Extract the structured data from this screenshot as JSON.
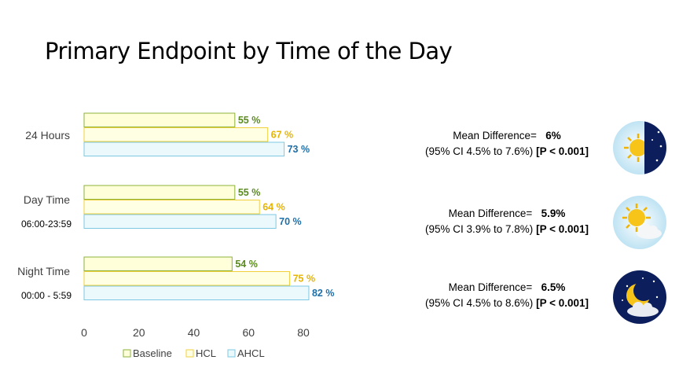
{
  "title": "Primary Endpoint by Time of the Day",
  "chart_data": {
    "type": "bar",
    "orientation": "horizontal",
    "categories": [
      {
        "label": "24 Hours",
        "sublabel": ""
      },
      {
        "label": "Day Time",
        "sublabel": "06:00-23:59"
      },
      {
        "label": "Night Time",
        "sublabel": "00:00 - 5:59"
      }
    ],
    "series": [
      {
        "name": "Baseline",
        "values": [
          55,
          55,
          54
        ],
        "labels": [
          "55 %",
          "55 %",
          "54 %"
        ],
        "fill": "#FFFFD9",
        "stroke": "#8DB33B",
        "text_color": "#5A8A1F"
      },
      {
        "name": "HCL",
        "values": [
          67,
          64,
          75
        ],
        "labels": [
          "67 %",
          "64 %",
          "75 %"
        ],
        "fill": "#FFFFE3",
        "stroke": "#F2D03D",
        "text_color": "#E8B400"
      },
      {
        "name": "AHCL",
        "values": [
          73,
          70,
          82
        ],
        "labels": [
          "73 %",
          "70 %",
          "82 %"
        ],
        "fill": "#EBF8FC",
        "stroke": "#7FC8E3",
        "text_color": "#1F6FA8"
      }
    ],
    "x_ticks": [
      0,
      20,
      40,
      60,
      80
    ],
    "xlim": [
      0,
      80
    ],
    "legend_position": "bottom",
    "grid": false
  },
  "stats": [
    {
      "label": "Mean Difference=",
      "value": "6%",
      "ci": "(95% CI 4.5% to 7.6%)",
      "p": "[P < 0.001]",
      "icon": "half-sun-half-moon-icon"
    },
    {
      "label": "Mean Difference=",
      "value": "5.9%",
      "ci": "(95% CI 3.9% to 7.8%)",
      "p": "[P < 0.001]",
      "icon": "sun-cloud-icon"
    },
    {
      "label": "Mean Difference=",
      "value": "6.5%",
      "ci": "(95% CI 4.5% to 8.6%)",
      "p": "[P < 0.001]",
      "icon": "moon-cloud-icon"
    }
  ]
}
